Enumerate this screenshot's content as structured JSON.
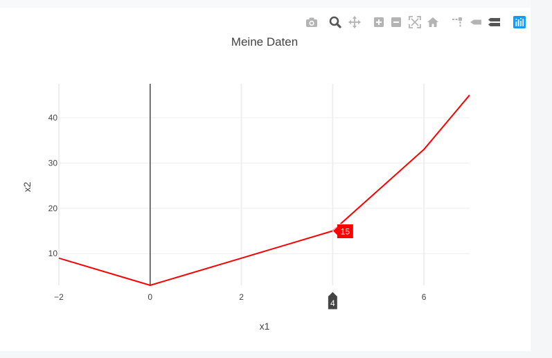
{
  "modebar": {
    "buttons": [
      {
        "name": "camera-icon",
        "label": "Download plot as a png"
      },
      {
        "name": "zoom-icon",
        "label": "Zoom"
      },
      {
        "name": "pan-icon",
        "label": "Pan"
      },
      {
        "name": "zoom-in-icon",
        "label": "Zoom in"
      },
      {
        "name": "zoom-out-icon",
        "label": "Zoom out"
      },
      {
        "name": "autoscale-icon",
        "label": "Autoscale"
      },
      {
        "name": "home-icon",
        "label": "Reset axes"
      },
      {
        "name": "spike-lines-icon",
        "label": "Toggle Spike Lines"
      },
      {
        "name": "hover-closest-icon",
        "label": "Show closest data on hover"
      },
      {
        "name": "hover-compare-icon",
        "label": "Compare data on hover"
      },
      {
        "name": "plotly-logo-icon",
        "label": "Produced with Plotly"
      }
    ],
    "active_color": "#1f77b4",
    "icon_color": "#7f7f7f",
    "dim_color": "#b4b4b4"
  },
  "chart_data": {
    "type": "line",
    "title": "Meine Daten",
    "xlabel": "x1",
    "ylabel": "x2",
    "xlim": [
      -2,
      7
    ],
    "ylim": [
      3,
      47.5
    ],
    "xticks": [
      -2,
      0,
      2,
      4,
      6
    ],
    "yticks": [
      10,
      20,
      30,
      40
    ],
    "xtick_labels": [
      "−2",
      "0",
      "2",
      "",
      "6"
    ],
    "ytick_labels": [
      "10",
      "20",
      "30",
      "40"
    ],
    "grid": true,
    "zero_line_x": true,
    "series": [
      {
        "color": "#ff0000",
        "x": [
          -2,
          0,
          2,
          4,
          6,
          7
        ],
        "y": [
          9,
          3,
          9,
          15,
          33,
          45
        ]
      }
    ],
    "hover": {
      "x": 4,
      "y": 15,
      "x_label": "4",
      "y_label": "15",
      "x_label_bg": "#444444",
      "y_label_bg": "#ff0000"
    }
  }
}
